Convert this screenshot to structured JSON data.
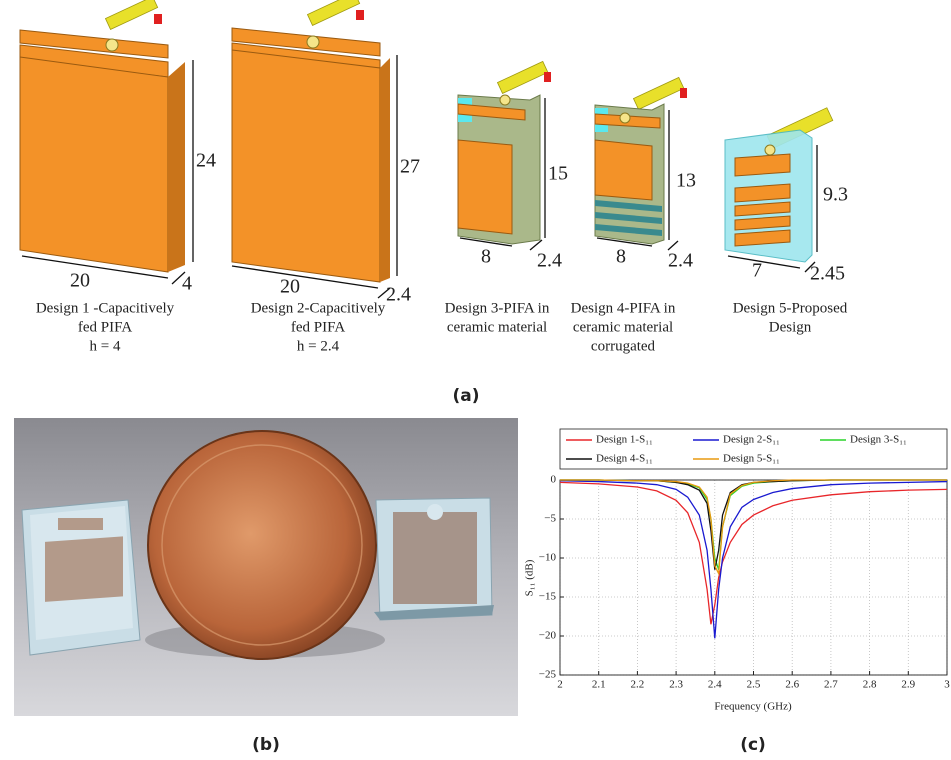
{
  "panel_a": {
    "label": "(a)",
    "designs": [
      {
        "dims": [
          "24",
          "20",
          "4"
        ],
        "caption": [
          "Design 1 -Capacitively",
          "fed PIFA",
          "h = 4"
        ]
      },
      {
        "dims": [
          "27",
          "20",
          "2.4"
        ],
        "caption": [
          "Design 2-Capacitively",
          "fed PIFA",
          "h = 2.4"
        ]
      },
      {
        "dims": [
          "15",
          "8",
          "2.4"
        ],
        "caption": [
          "Design 3-PIFA in",
          "ceramic material"
        ]
      },
      {
        "dims": [
          "13",
          "8",
          "2.4"
        ],
        "caption": [
          "Design 4-PIFA in",
          "ceramic material",
          "corrugated"
        ]
      },
      {
        "dims": [
          "9.3",
          "7",
          "2.45"
        ],
        "caption": [
          "Design 5-Proposed",
          "Design"
        ]
      }
    ]
  },
  "panel_b": {
    "label": "(b)"
  },
  "chart_data": {
    "type": "line",
    "panel_label": "(c)",
    "xlabel": "Frequency (GHz)",
    "ylabel": "S₁₁ (dB)",
    "x": [
      2.0,
      2.1,
      2.2,
      2.25,
      2.3,
      2.33,
      2.36,
      2.38,
      2.39,
      2.4,
      2.41,
      2.42,
      2.44,
      2.47,
      2.5,
      2.55,
      2.6,
      2.7,
      2.8,
      2.9,
      3.0
    ],
    "series": [
      {
        "name": "Design 1-S₁₁",
        "color": "#e8262a",
        "values": [
          -0.3,
          -0.5,
          -0.9,
          -1.4,
          -2.6,
          -4.2,
          -8,
          -14,
          -18.5,
          -16,
          -12.5,
          -10.5,
          -8,
          -5.7,
          -4.5,
          -3.3,
          -2.6,
          -1.9,
          -1.5,
          -1.3,
          -1.2
        ]
      },
      {
        "name": "Design 2-S₁₁",
        "color": "#1a1ad0",
        "values": [
          -0.1,
          -0.2,
          -0.4,
          -0.6,
          -1.2,
          -2.2,
          -4.5,
          -9,
          -14,
          -20.3,
          -14,
          -10,
          -6,
          -3.5,
          -2.5,
          -1.6,
          -1.1,
          -0.6,
          -0.4,
          -0.3,
          -0.2
        ]
      },
      {
        "name": "Design 3-S₁₁",
        "color": "#2ad42a",
        "values": [
          0,
          0,
          -0.1,
          -0.1,
          -0.3,
          -0.5,
          -1,
          -2.5,
          -5,
          -10,
          -11.5,
          -6,
          -2,
          -0.8,
          -0.4,
          -0.2,
          -0.1,
          0,
          0,
          0,
          0
        ]
      },
      {
        "name": "Design 4-S₁₁",
        "color": "#111111",
        "values": [
          0,
          0,
          -0.1,
          -0.1,
          -0.3,
          -0.6,
          -1.3,
          -3,
          -6.5,
          -11.5,
          -9,
          -4.5,
          -1.6,
          -0.6,
          -0.3,
          -0.2,
          -0.1,
          0,
          0,
          0,
          0
        ]
      },
      {
        "name": "Design 5-S₁₁",
        "color": "#e89a10",
        "values": [
          0,
          0,
          -0.1,
          -0.1,
          -0.2,
          -0.4,
          -0.9,
          -2.2,
          -5,
          -11,
          -12,
          -6,
          -1.8,
          -0.7,
          -0.3,
          -0.1,
          0,
          0,
          0,
          0,
          0
        ]
      }
    ],
    "xlim": [
      2,
      3
    ],
    "xticks": [
      2,
      2.1,
      2.2,
      2.3,
      2.4,
      2.5,
      2.6,
      2.7,
      2.8,
      2.9,
      3
    ],
    "ylim": [
      -25,
      0
    ],
    "yticks": [
      {
        "value": -25,
        "label": "−25"
      },
      {
        "value": -20,
        "label": "−20"
      },
      {
        "value": -15,
        "label": "−15"
      },
      {
        "value": -10,
        "label": "−10"
      },
      {
        "value": -5,
        "label": "−5"
      },
      0
    ],
    "grid": true,
    "legend": "top"
  }
}
